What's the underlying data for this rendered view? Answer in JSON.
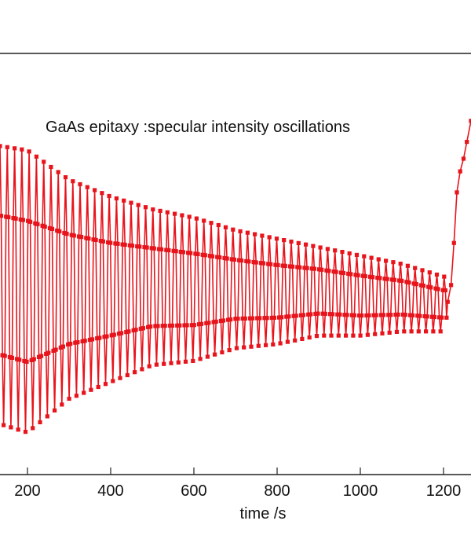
{
  "chart_data": {
    "type": "line",
    "annotation": "GaAs epitaxy :specular intensity oscillations",
    "xlabel": "time /s",
    "ylabel": "",
    "x_ticks": [
      200,
      400,
      600,
      800,
      1000,
      1200
    ],
    "xlim": [
      134,
      1266
    ],
    "ylim": [
      0,
      1
    ],
    "grid": false,
    "series": [
      {
        "color": "#e8141c",
        "marker": "square",
        "description_segments": [
          {
            "x_range": [
              134,
              1220
            ],
            "period_s": 17.5,
            "envelope": [
              {
                "x": 134,
                "max": 0.78,
                "min": 0.12
              },
              {
                "x": 200,
                "max": 0.77,
                "min": 0.1
              },
              {
                "x": 300,
                "max": 0.7,
                "min": 0.18
              },
              {
                "x": 400,
                "max": 0.66,
                "min": 0.22
              },
              {
                "x": 500,
                "max": 0.63,
                "min": 0.26
              },
              {
                "x": 600,
                "max": 0.61,
                "min": 0.27
              },
              {
                "x": 700,
                "max": 0.58,
                "min": 0.3
              },
              {
                "x": 800,
                "max": 0.56,
                "min": 0.31
              },
              {
                "x": 900,
                "max": 0.54,
                "min": 0.33
              },
              {
                "x": 1000,
                "max": 0.52,
                "min": 0.33
              },
              {
                "x": 1100,
                "max": 0.5,
                "min": 0.34
              },
              {
                "x": 1200,
                "max": 0.47,
                "min": 0.34
              }
            ]
          },
          {
            "x_range": [
              1220,
              1266
            ],
            "rise": [
              {
                "x": 1210,
                "y": 0.41
              },
              {
                "x": 1218,
                "y": 0.45
              },
              {
                "x": 1225,
                "y": 0.55
              },
              {
                "x": 1232,
                "y": 0.67
              },
              {
                "x": 1240,
                "y": 0.72
              },
              {
                "x": 1248,
                "y": 0.75
              },
              {
                "x": 1256,
                "y": 0.79
              },
              {
                "x": 1266,
                "y": 0.84
              }
            ]
          }
        ]
      }
    ]
  }
}
